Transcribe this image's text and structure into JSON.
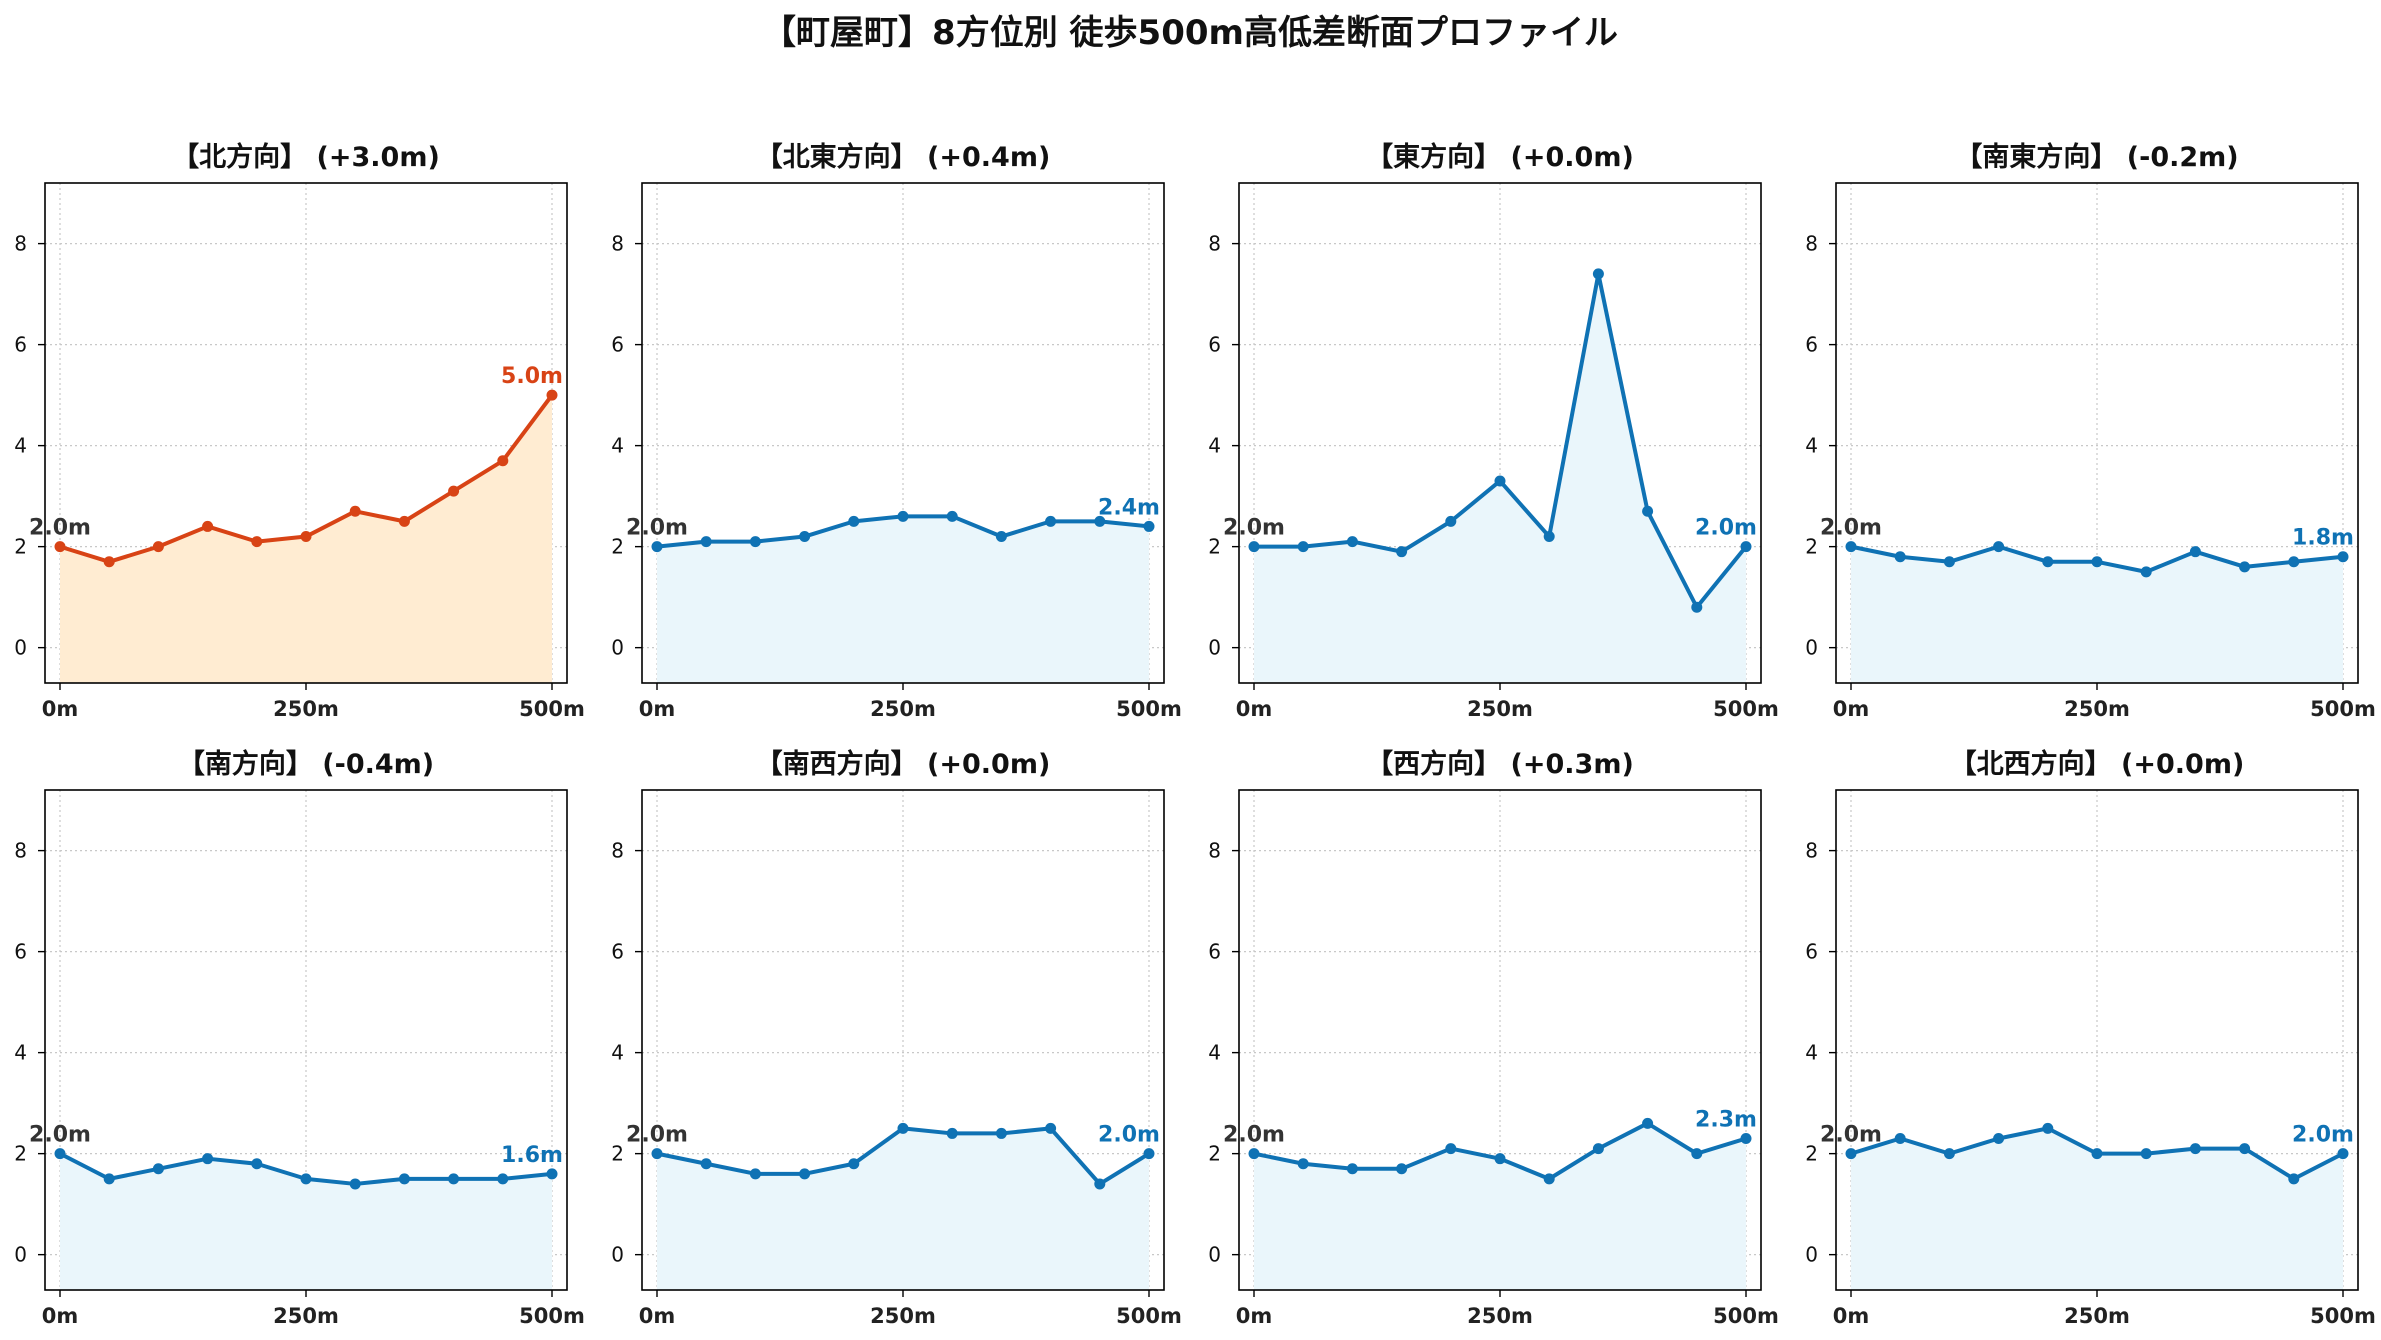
{
  "title": "【町屋町】8方位別 徒歩500m高低差断面プロファイル",
  "colors": {
    "up_line": "#d84315",
    "up_fill": "#ffecd2",
    "flat_line": "#0f72b4",
    "flat_fill": "#eaf6fb",
    "start_label": "#333333",
    "grid": "#c8c8c8"
  },
  "chart_data": [
    {
      "type": "area",
      "title": "【北方向】 (+3.0m)",
      "trend": "up",
      "x": [
        "0m",
        "50m",
        "100m",
        "150m",
        "200m",
        "250m",
        "300m",
        "350m",
        "400m",
        "450m",
        "500m"
      ],
      "y": [
        2.0,
        1.7,
        2.0,
        2.4,
        2.1,
        2.2,
        2.7,
        2.5,
        3.1,
        3.7,
        5.0
      ],
      "start_label": "2.0m",
      "end_label": "5.0m",
      "xticks": [
        "0m",
        "250m",
        "500m"
      ],
      "yticks": [
        "0",
        "2",
        "4",
        "6",
        "8"
      ],
      "ylim": [
        -0.7,
        9.2
      ],
      "grid": true
    },
    {
      "type": "area",
      "title": "【北東方向】 (+0.4m)",
      "trend": "flat",
      "x": [
        "0m",
        "50m",
        "100m",
        "150m",
        "200m",
        "250m",
        "300m",
        "350m",
        "400m",
        "450m",
        "500m"
      ],
      "y": [
        2.0,
        2.1,
        2.1,
        2.2,
        2.5,
        2.6,
        2.6,
        2.2,
        2.5,
        2.5,
        2.4
      ],
      "start_label": "2.0m",
      "end_label": "2.4m",
      "xticks": [
        "0m",
        "250m",
        "500m"
      ],
      "yticks": [
        "0",
        "2",
        "4",
        "6",
        "8"
      ],
      "ylim": [
        -0.7,
        9.2
      ],
      "grid": true
    },
    {
      "type": "area",
      "title": "【東方向】 (+0.0m)",
      "trend": "flat",
      "x": [
        "0m",
        "50m",
        "100m",
        "150m",
        "200m",
        "250m",
        "300m",
        "350m",
        "400m",
        "450m",
        "500m"
      ],
      "y": [
        2.0,
        2.0,
        2.1,
        1.9,
        2.5,
        3.3,
        2.2,
        7.4,
        2.7,
        0.8,
        2.0
      ],
      "start_label": "2.0m",
      "end_label": "2.0m",
      "xticks": [
        "0m",
        "250m",
        "500m"
      ],
      "yticks": [
        "0",
        "2",
        "4",
        "6",
        "8"
      ],
      "ylim": [
        -0.7,
        9.2
      ],
      "grid": true
    },
    {
      "type": "area",
      "title": "【南東方向】 (-0.2m)",
      "trend": "flat",
      "x": [
        "0m",
        "50m",
        "100m",
        "150m",
        "200m",
        "250m",
        "300m",
        "350m",
        "400m",
        "450m",
        "500m"
      ],
      "y": [
        2.0,
        1.8,
        1.7,
        2.0,
        1.7,
        1.7,
        1.5,
        1.9,
        1.6,
        1.7,
        1.8
      ],
      "start_label": "2.0m",
      "end_label": "1.8m",
      "xticks": [
        "0m",
        "250m",
        "500m"
      ],
      "yticks": [
        "0",
        "2",
        "4",
        "6",
        "8"
      ],
      "ylim": [
        -0.7,
        9.2
      ],
      "grid": true
    },
    {
      "type": "area",
      "title": "【南方向】 (-0.4m)",
      "trend": "flat",
      "x": [
        "0m",
        "50m",
        "100m",
        "150m",
        "200m",
        "250m",
        "300m",
        "350m",
        "400m",
        "450m",
        "500m"
      ],
      "y": [
        2.0,
        1.5,
        1.7,
        1.9,
        1.8,
        1.5,
        1.4,
        1.5,
        1.5,
        1.5,
        1.6
      ],
      "start_label": "2.0m",
      "end_label": "1.6m",
      "xticks": [
        "0m",
        "250m",
        "500m"
      ],
      "yticks": [
        "0",
        "2",
        "4",
        "6",
        "8"
      ],
      "ylim": [
        -0.7,
        9.2
      ],
      "grid": true
    },
    {
      "type": "area",
      "title": "【南西方向】 (+0.0m)",
      "trend": "flat",
      "x": [
        "0m",
        "50m",
        "100m",
        "150m",
        "200m",
        "250m",
        "300m",
        "350m",
        "400m",
        "450m",
        "500m"
      ],
      "y": [
        2.0,
        1.8,
        1.6,
        1.6,
        1.8,
        2.5,
        2.4,
        2.4,
        2.5,
        1.4,
        2.0
      ],
      "start_label": "2.0m",
      "end_label": "2.0m",
      "xticks": [
        "0m",
        "250m",
        "500m"
      ],
      "yticks": [
        "0",
        "2",
        "4",
        "6",
        "8"
      ],
      "ylim": [
        -0.7,
        9.2
      ],
      "grid": true
    },
    {
      "type": "area",
      "title": "【西方向】 (+0.3m)",
      "trend": "flat",
      "x": [
        "0m",
        "50m",
        "100m",
        "150m",
        "200m",
        "250m",
        "300m",
        "350m",
        "400m",
        "450m",
        "500m"
      ],
      "y": [
        2.0,
        1.8,
        1.7,
        1.7,
        2.1,
        1.9,
        1.5,
        2.1,
        2.6,
        2.0,
        2.3
      ],
      "start_label": "2.0m",
      "end_label": "2.3m",
      "xticks": [
        "0m",
        "250m",
        "500m"
      ],
      "yticks": [
        "0",
        "2",
        "4",
        "6",
        "8"
      ],
      "ylim": [
        -0.7,
        9.2
      ],
      "grid": true
    },
    {
      "type": "area",
      "title": "【北西方向】 (+0.0m)",
      "trend": "flat",
      "x": [
        "0m",
        "50m",
        "100m",
        "150m",
        "200m",
        "250m",
        "300m",
        "350m",
        "400m",
        "450m",
        "500m"
      ],
      "y": [
        2.0,
        2.3,
        2.0,
        2.3,
        2.5,
        2.0,
        2.0,
        2.1,
        2.1,
        1.5,
        2.0
      ],
      "start_label": "2.0m",
      "end_label": "2.0m",
      "xticks": [
        "0m",
        "250m",
        "500m"
      ],
      "yticks": [
        "0",
        "2",
        "4",
        "6",
        "8"
      ],
      "ylim": [
        -0.7,
        9.2
      ],
      "grid": true
    }
  ]
}
